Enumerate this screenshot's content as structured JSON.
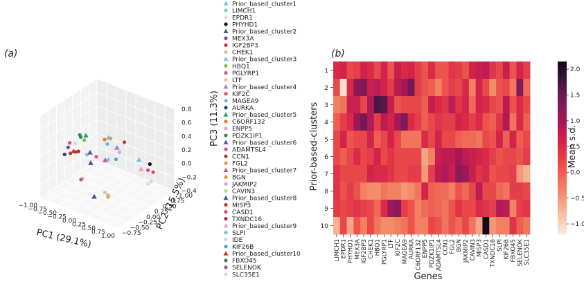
{
  "chart_data": [
    {
      "type": "scatter",
      "panel_label": "(a)",
      "xlabel": "PC1 (29.1%)",
      "ylabel": "PC2 (15.5%)",
      "zlabel": "PC3 (11.3%)",
      "x_ticks": [
        "−1.00",
        "−0.75",
        "−0.50",
        "−0.25",
        "0.00",
        "0.25",
        "0.50",
        "0.75",
        "1.00"
      ],
      "y_ticks": [
        "−0.75",
        "−0.50",
        "−0.25",
        "0.00",
        "0.25",
        "0.50",
        "0.75",
        "1.00"
      ],
      "z_ticks": [
        "−0.4",
        "−0.2",
        "0.0",
        "0.2",
        "0.4",
        "0.6",
        "0.8"
      ],
      "xlim": [
        -1.0,
        1.0
      ],
      "ylim": [
        -0.75,
        1.0
      ],
      "zlim": [
        -0.4,
        0.8
      ],
      "grid": true,
      "legend_position": "right",
      "legend": [
        {
          "label": "Prior_based_cluster1",
          "color": "#6ec7e3",
          "marker": "triangle"
        },
        {
          "label": "LIMCH1",
          "color": "#7ccbc4",
          "marker": "circle"
        },
        {
          "label": "EPDR1",
          "color": "#f6cfd6",
          "marker": "circle"
        },
        {
          "label": "PHYHD1",
          "color": "#111111",
          "marker": "circle"
        },
        {
          "label": "Prior_based_cluster2",
          "color": "#3d4fa0",
          "marker": "triangle"
        },
        {
          "label": "MEX3A",
          "color": "#8a3c9a",
          "marker": "circle"
        },
        {
          "label": "IGF2BP3",
          "color": "#c0392b",
          "marker": "circle"
        },
        {
          "label": "CHEK1",
          "color": "#e8b99a",
          "marker": "circle"
        },
        {
          "label": "Prior_based_cluster3",
          "color": "#6ec7e3",
          "marker": "triangle"
        },
        {
          "label": "HBQ1",
          "color": "#7fbf3f",
          "marker": "circle"
        },
        {
          "label": "PGLYRP1",
          "color": "#e84b8a",
          "marker": "circle"
        },
        {
          "label": "LTF",
          "color": "#f2c28c",
          "marker": "circle"
        },
        {
          "label": "Prior_based_cluster4",
          "color": "#9b7fd1",
          "marker": "triangle"
        },
        {
          "label": "KIF2C",
          "color": "#e74c3c",
          "marker": "circle"
        },
        {
          "label": "MAGEA9",
          "color": "#5bc0de",
          "marker": "circle"
        },
        {
          "label": "AURKA",
          "color": "#2c3e8c",
          "marker": "circle"
        },
        {
          "label": "Prior_based_cluster5",
          "color": "#2a9d8f",
          "marker": "triangle"
        },
        {
          "label": "C6ORF132",
          "color": "#e67e22",
          "marker": "circle"
        },
        {
          "label": "ENPP5",
          "color": "#e7a5c0",
          "marker": "circle"
        },
        {
          "label": "PDZK1IP1",
          "color": "#2e8b57",
          "marker": "circle"
        },
        {
          "label": "Prior_based_cluster6",
          "color": "#4a5ba8",
          "marker": "triangle"
        },
        {
          "label": "ADAMTSL4",
          "color": "#e0447f",
          "marker": "circle"
        },
        {
          "label": "CCN1",
          "color": "#b0392e",
          "marker": "circle"
        },
        {
          "label": "FGL2",
          "color": "#e6a23c",
          "marker": "circle"
        },
        {
          "label": "Prior_based_cluster7",
          "color": "#e84b8a",
          "marker": "triangle"
        },
        {
          "label": "BGN",
          "color": "#e8953c",
          "marker": "circle"
        },
        {
          "label": "JAKMIP2",
          "color": "#d5a6d8",
          "marker": "circle"
        },
        {
          "label": "CAVIN3",
          "color": "#b5d98a",
          "marker": "circle"
        },
        {
          "label": "Prior_based_cluster8",
          "color": "#3d4fa0",
          "marker": "triangle"
        },
        {
          "label": "MISP3",
          "color": "#c0392b",
          "marker": "circle"
        },
        {
          "label": "CASD1",
          "color": "#e0447f",
          "marker": "circle"
        },
        {
          "label": "TXNDC16",
          "color": "#a8322a",
          "marker": "circle"
        },
        {
          "label": "Prior_based_cluster9",
          "color": "#f39ac7",
          "marker": "triangle"
        },
        {
          "label": "SLPI",
          "color": "#6ec7e3",
          "marker": "circle"
        },
        {
          "label": "IDE",
          "color": "#d8d0e8",
          "marker": "circle"
        },
        {
          "label": "KIF26B",
          "color": "#4aa3df",
          "marker": "circle"
        },
        {
          "label": "Prior_based_cluster10",
          "color": "#c0392b",
          "marker": "triangle"
        },
        {
          "label": "FBXO45",
          "color": "#2e8b57",
          "marker": "circle"
        },
        {
          "label": "SELENOK",
          "color": "#9b59b6",
          "marker": "circle"
        },
        {
          "label": "SLC35E1",
          "color": "#d9d9d9",
          "marker": "circle"
        }
      ],
      "points": [
        {
          "label": "Prior_based_cluster1",
          "x": 0.75,
          "y": 0.2,
          "z": 0.25
        },
        {
          "label": "LIMCH1",
          "x": -0.55,
          "y": 0.15,
          "z": 0.05
        },
        {
          "label": "EPDR1",
          "x": 0.9,
          "y": 0.3,
          "z": -0.1
        },
        {
          "label": "PHYHD1",
          "x": 0.95,
          "y": 0.3,
          "z": 0.2
        },
        {
          "label": "Prior_based_cluster2",
          "x": -0.2,
          "y": -0.15,
          "z": 0.1
        },
        {
          "label": "MEX3A",
          "x": -0.95,
          "y": 0.05,
          "z": 0.1
        },
        {
          "label": "IGF2BP3",
          "x": -0.85,
          "y": 0.0,
          "z": 0.05
        },
        {
          "label": "CHEK1",
          "x": -0.45,
          "y": -0.1,
          "z": -0.2
        },
        {
          "label": "Prior_based_cluster3",
          "x": -0.2,
          "y": 0.4,
          "z": 0.3
        },
        {
          "label": "HBQ1",
          "x": -0.7,
          "y": 0.25,
          "z": 0.2
        },
        {
          "label": "PGLYRP1",
          "x": -0.35,
          "y": 0.2,
          "z": 0.05
        },
        {
          "label": "LTF",
          "x": 0.55,
          "y": -0.5,
          "z": -0.1
        },
        {
          "label": "Prior_based_cluster4",
          "x": 0.1,
          "y": 0.3,
          "z": 0.25
        },
        {
          "label": "KIF2C",
          "x": 0.95,
          "y": 0.4,
          "z": 0.05
        },
        {
          "label": "MAGEA9",
          "x": -0.15,
          "y": 0.3,
          "z": 0.25
        },
        {
          "label": "AURKA",
          "x": -1.0,
          "y": 0.0,
          "z": 0.0
        },
        {
          "label": "Prior_based_cluster5",
          "x": -0.7,
          "y": 0.3,
          "z": 0.25
        },
        {
          "label": "C6ORF132",
          "x": -0.3,
          "y": 0.4,
          "z": 0.25
        },
        {
          "label": "ENPP5",
          "x": 0.45,
          "y": -0.4,
          "z": -0.15
        },
        {
          "label": "PDZK1IP1",
          "x": -0.75,
          "y": 0.2,
          "z": 0.25
        },
        {
          "label": "Prior_based_cluster6",
          "x": -0.3,
          "y": -0.05,
          "z": 0.2
        },
        {
          "label": "ADAMTSL4",
          "x": -0.95,
          "y": 0.1,
          "z": 0.15
        },
        {
          "label": "CCN1",
          "x": -0.8,
          "y": 0.1,
          "z": 0.05
        },
        {
          "label": "FGL2",
          "x": 0.5,
          "y": -0.45,
          "z": -0.15
        },
        {
          "label": "Prior_based_cluster7",
          "x": 0.05,
          "y": 0.0,
          "z": 0.15
        },
        {
          "label": "BGN",
          "x": -0.15,
          "y": 0.4,
          "z": 0.3
        },
        {
          "label": "JAKMIP2",
          "x": 0.25,
          "y": 0.2,
          "z": 0.25
        },
        {
          "label": "CAVIN3",
          "x": 0.5,
          "y": -0.55,
          "z": -0.05
        },
        {
          "label": "Prior_based_cluster8",
          "x": 0.35,
          "y": -0.7,
          "z": -0.1
        },
        {
          "label": "MISP3",
          "x": 0.25,
          "y": 0.35,
          "z": 0.35
        },
        {
          "label": "CASD1",
          "x": 0.9,
          "y": 0.3,
          "z": 0.1
        },
        {
          "label": "TXNDC16",
          "x": -0.6,
          "y": -0.05,
          "z": 0.15
        },
        {
          "label": "Prior_based_cluster9",
          "x": 0.85,
          "y": 0.15,
          "z": 0.15
        },
        {
          "label": "SLPI",
          "x": 0.0,
          "y": 0.15,
          "z": 0.1
        },
        {
          "label": "IDE",
          "x": 0.9,
          "y": 0.4,
          "z": -0.1
        },
        {
          "label": "KIF26B",
          "x": 0.2,
          "y": 0.15,
          "z": 0.15
        },
        {
          "label": "Prior_based_cluster10",
          "x": -0.6,
          "y": -0.2,
          "z": 0.2
        },
        {
          "label": "FBXO45",
          "x": -0.9,
          "y": 0.35,
          "z": 0.2
        },
        {
          "label": "SELENOK",
          "x": -0.2,
          "y": -0.45,
          "z": -0.05
        },
        {
          "label": "SLC35E1",
          "x": -0.85,
          "y": 0.15,
          "z": 0.15
        }
      ]
    },
    {
      "type": "heatmap",
      "panel_label": "(b)",
      "xlabel": "Genes",
      "ylabel": "Prior-based-clusters",
      "colorbar_label": "Mean s.d.",
      "colorbar_ticks": [
        "2.0",
        "1.5",
        "1.0",
        "0.5",
        "0.0",
        "−0.5",
        "−1.0"
      ],
      "vmin": -1.2,
      "vmax": 2.15,
      "colormap": "rocket_r",
      "columns": [
        "LIMCH1",
        "EPDR1",
        "PHYHD1",
        "MEX3A",
        "IGF2BP3",
        "CHEK1",
        "HBQ1",
        "PGLYRP1",
        "LTF",
        "KIF2C",
        "MAGEA9",
        "AURKA",
        "C6ORF132",
        "ENPP5",
        "PDZK1IP1",
        "ADAMTSL4",
        "CCN1",
        "FGL2",
        "BGN",
        "JAKMIP2",
        "CAVIN3",
        "MISP3",
        "CASD1",
        "TXNDC16",
        "SLPI",
        "KIF26B",
        "FBXO45",
        "SELENOK",
        "SLC35E1"
      ],
      "rows": [
        "1",
        "2",
        "3",
        "4",
        "5",
        "6",
        "7",
        "8",
        "9",
        "10"
      ],
      "values": [
        [
          0.5,
          0.6,
          0.2,
          0.3,
          0.6,
          0.5,
          0.2,
          0.6,
          0.1,
          0.7,
          0.5,
          0.6,
          0.3,
          0.1,
          0.5,
          0.1,
          0.1,
          0.4,
          0.3,
          0.1,
          0.6,
          0.7,
          0.8,
          0.4,
          0.2,
          0.7,
          0.1,
          0.6,
          0.3
        ],
        [
          0.2,
          -1.1,
          0.5,
          1.2,
          1.3,
          0.7,
          0.8,
          0.6,
          0.3,
          0.8,
          1.0,
          1.4,
          0.3,
          0.1,
          0.0,
          -0.3,
          0.1,
          0.3,
          0.2,
          0.5,
          -0.3,
          0.6,
          0.2,
          -0.4,
          0.1,
          0.2,
          -0.2,
          1.3,
          -0.1
        ],
        [
          -0.3,
          -0.2,
          0.7,
          0.7,
          0.2,
          0.9,
          1.7,
          1.6,
          0.7,
          0.1,
          0.2,
          0.2,
          0.2,
          0.0,
          0.7,
          0.5,
          0.4,
          0.8,
          0.4,
          0.6,
          -0.1,
          0.6,
          0.5,
          0.2,
          0.1,
          0.8,
          0.1,
          0.5,
          0.2
        ],
        [
          0.0,
          0.3,
          0.5,
          1.1,
          1.4,
          0.9,
          0.3,
          0.8,
          0.6,
          1.0,
          1.3,
          0.5,
          0.3,
          0.0,
          0.2,
          0.4,
          0.3,
          0.3,
          0.6,
          0.5,
          0.3,
          0.5,
          0.1,
          0.0,
          0.4,
          0.9,
          -0.2,
          0.5,
          0.0
        ],
        [
          0.2,
          0.6,
          0.1,
          0.2,
          0.2,
          0.6,
          0.0,
          0.2,
          0.6,
          0.2,
          -0.2,
          -0.2,
          -0.2,
          0.5,
          0.2,
          0.6,
          0.2,
          0.2,
          0.0,
          -0.1,
          -0.1,
          -0.2,
          0.2,
          0.1,
          0.6,
          0.0,
          0.6,
          0.0,
          0.2
        ],
        [
          0.2,
          0.0,
          0.2,
          0.5,
          0.2,
          0.3,
          0.6,
          0.2,
          0.4,
          0.2,
          0.2,
          0.2,
          0.2,
          -0.6,
          -0.3,
          0.7,
          0.8,
          0.8,
          1.0,
          0.8,
          0.7,
          0.6,
          0.5,
          0.3,
          0.1,
          0.2,
          0.2,
          0.1,
          0.3
        ],
        [
          0.4,
          0.2,
          0.2,
          0.2,
          0.2,
          0.6,
          0.5,
          0.5,
          0.4,
          0.2,
          0.2,
          0.3,
          0.3,
          -0.5,
          0.3,
          0.8,
          0.9,
          0.7,
          1.2,
          1.1,
          0.7,
          0.4,
          0.5,
          0.1,
          0.2,
          0.2,
          0.3,
          -0.5,
          -0.7
        ],
        [
          0.4,
          0.1,
          0.3,
          0.1,
          -0.3,
          -0.4,
          -0.4,
          -0.2,
          -0.3,
          -0.3,
          -0.5,
          -0.4,
          -0.2,
          0.6,
          0.0,
          -0.1,
          -0.1,
          -0.3,
          0.1,
          -0.1,
          0.2,
          0.8,
          0.2,
          0.2,
          -0.1,
          -0.2,
          0.3,
          0.3,
          0.2
        ],
        [
          0.3,
          0.2,
          0.3,
          0.4,
          0.3,
          0.2,
          -0.1,
          0.5,
          1.1,
          1.2,
          0.3,
          0.1,
          -0.3,
          -0.1,
          0.0,
          -0.1,
          -0.2,
          0.1,
          0.4,
          0.2,
          0.2,
          0.5,
          0.4,
          0.3,
          0.9,
          0.8,
          -0.3,
          0.3,
          0.4
        ],
        [
          -0.7,
          0.2,
          -0.6,
          0.1,
          -0.3,
          0.2,
          -0.2,
          -0.4,
          -0.4,
          -0.3,
          -0.2,
          0.1,
          -0.3,
          -0.3,
          0.2,
          0.1,
          -0.2,
          0.1,
          -0.1,
          0.2,
          -0.2,
          -0.6,
          2.1,
          -0.5,
          -0.3,
          -0.3,
          0.4,
          0.0,
          -0.2
        ]
      ]
    }
  ]
}
